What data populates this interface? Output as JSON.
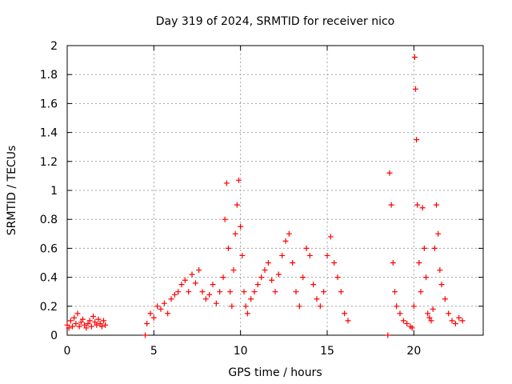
{
  "chart_data": {
    "type": "scatter",
    "title": "Day 319 of 2024, SRMTID for receiver nico",
    "xlabel": "GPS time / hours",
    "ylabel": "SRMTID / TECUs",
    "xlim": [
      0,
      24
    ],
    "ylim": [
      0,
      2
    ],
    "xticks": [
      0,
      5,
      10,
      15,
      20
    ],
    "yticks": [
      0,
      0.2,
      0.4,
      0.6,
      0.8,
      1,
      1.2,
      1.4,
      1.6,
      1.8,
      2
    ],
    "grid": true,
    "marker": "plus",
    "color": "#ff0000",
    "series": [
      {
        "name": "SRMTID",
        "x": [
          0.0,
          0.1,
          0.2,
          0.3,
          0.4,
          0.5,
          0.6,
          0.7,
          0.8,
          0.9,
          1.0,
          1.1,
          1.2,
          1.3,
          1.4,
          1.5,
          1.6,
          1.7,
          1.8,
          1.9,
          2.0,
          2.1,
          2.2,
          4.5,
          4.6,
          4.8,
          5.0,
          5.2,
          5.4,
          5.6,
          5.8,
          6.0,
          6.2,
          6.4,
          6.6,
          6.8,
          7.0,
          7.2,
          7.4,
          7.6,
          7.8,
          8.0,
          8.2,
          8.4,
          8.6,
          8.8,
          9.0,
          9.1,
          9.2,
          9.3,
          9.4,
          9.5,
          9.6,
          9.7,
          9.8,
          9.9,
          10.0,
          10.1,
          10.2,
          10.3,
          10.4,
          10.6,
          10.8,
          11.0,
          11.2,
          11.4,
          11.6,
          11.8,
          12.0,
          12.2,
          12.4,
          12.6,
          12.8,
          13.0,
          13.2,
          13.4,
          13.6,
          13.8,
          14.0,
          14.2,
          14.4,
          14.6,
          14.8,
          15.0,
          15.2,
          15.4,
          15.6,
          15.8,
          16.0,
          16.2,
          18.5,
          18.6,
          18.7,
          18.8,
          18.9,
          19.0,
          19.2,
          19.4,
          19.6,
          19.8,
          19.9,
          20.0,
          20.05,
          20.1,
          20.15,
          20.2,
          20.3,
          20.4,
          20.5,
          20.6,
          20.7,
          20.8,
          20.9,
          21.0,
          21.1,
          21.2,
          21.3,
          21.4,
          21.5,
          21.6,
          21.8,
          22.0,
          22.2,
          22.4,
          22.6,
          22.8
        ],
        "y": [
          0.07,
          0.05,
          0.1,
          0.06,
          0.12,
          0.08,
          0.15,
          0.06,
          0.09,
          0.11,
          0.07,
          0.05,
          0.08,
          0.1,
          0.06,
          0.13,
          0.09,
          0.07,
          0.11,
          0.08,
          0.06,
          0.1,
          0.07,
          0.0,
          0.08,
          0.15,
          0.12,
          0.2,
          0.18,
          0.22,
          0.15,
          0.25,
          0.28,
          0.3,
          0.35,
          0.38,
          0.3,
          0.42,
          0.36,
          0.45,
          0.3,
          0.25,
          0.28,
          0.35,
          0.22,
          0.3,
          0.4,
          0.8,
          1.05,
          0.6,
          0.3,
          0.2,
          0.45,
          0.7,
          0.9,
          1.07,
          0.75,
          0.55,
          0.3,
          0.2,
          0.15,
          0.25,
          0.3,
          0.35,
          0.4,
          0.45,
          0.5,
          0.38,
          0.3,
          0.42,
          0.55,
          0.65,
          0.7,
          0.5,
          0.3,
          0.2,
          0.4,
          0.6,
          0.55,
          0.35,
          0.25,
          0.2,
          0.3,
          0.55,
          0.68,
          0.5,
          0.4,
          0.3,
          0.15,
          0.1,
          0.0,
          1.12,
          0.9,
          0.5,
          0.3,
          0.2,
          0.15,
          0.1,
          0.08,
          0.06,
          0.05,
          0.2,
          1.92,
          1.7,
          1.35,
          0.9,
          0.5,
          0.3,
          0.88,
          0.6,
          0.4,
          0.15,
          0.12,
          0.1,
          0.18,
          0.6,
          0.9,
          0.7,
          0.45,
          0.35,
          0.25,
          0.15,
          0.1,
          0.08,
          0.12,
          0.1
        ]
      }
    ]
  }
}
